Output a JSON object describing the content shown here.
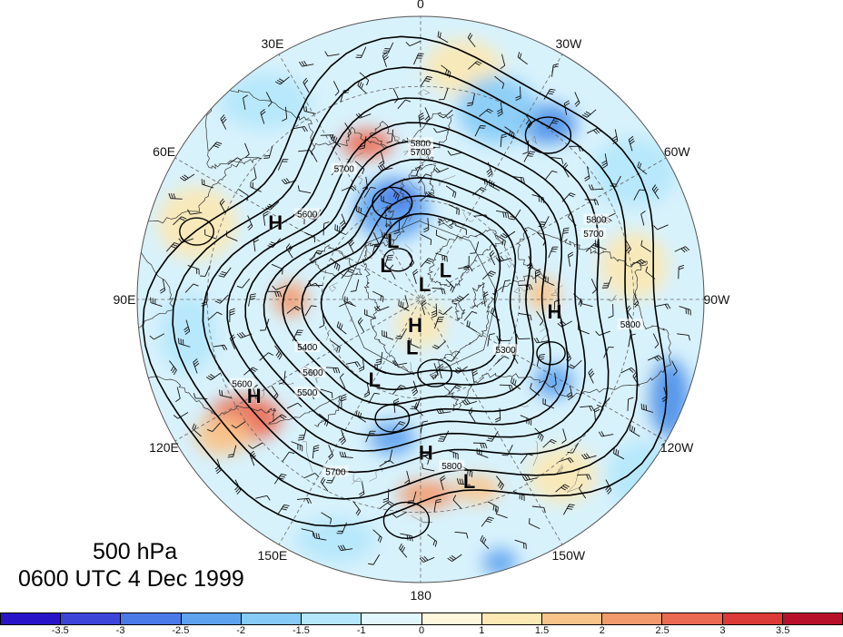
{
  "title": {
    "level": "500 hPa",
    "time": "0600 UTC 4 Dec 1999"
  },
  "longitude_labels": [
    "0",
    "30W",
    "60W",
    "90W",
    "120W",
    "150W",
    "180",
    "150E",
    "120E",
    "90E",
    "60E",
    "30E"
  ],
  "contour_labels": [
    "5800",
    "5700",
    "5700",
    "5600",
    "5500",
    "5400",
    "5300",
    "5600",
    "5700",
    "5800",
    "5700",
    "5800",
    "5600",
    "5800"
  ],
  "pressure_centers": [
    {
      "label": "H",
      "lon_deg_e": 62,
      "lat_deg": 42
    },
    {
      "label": "H",
      "lon_deg_e": -95,
      "lat_deg": 50
    },
    {
      "label": "H",
      "lon_deg_e": 120,
      "lat_deg": 35
    },
    {
      "label": "H",
      "lon_deg_e": 168,
      "lat_deg": 82
    },
    {
      "label": "H",
      "lon_deg_e": -178,
      "lat_deg": 45
    },
    {
      "label": "L",
      "lon_deg_e": 25,
      "lat_deg": 70
    },
    {
      "label": "L",
      "lon_deg_e": 45,
      "lat_deg": 75
    },
    {
      "label": "L",
      "lon_deg_e": -15,
      "lat_deg": 85
    },
    {
      "label": "L",
      "lon_deg_e": -40,
      "lat_deg": 78
    },
    {
      "label": "L",
      "lon_deg_e": 170,
      "lat_deg": 75
    },
    {
      "label": "L",
      "lon_deg_e": 150,
      "lat_deg": 62
    },
    {
      "label": "L",
      "lon_deg_e": -165,
      "lat_deg": 36
    }
  ],
  "colorbar": {
    "colors": [
      "#2a14c8",
      "#3d45d9",
      "#4a7ae8",
      "#5ea3f0",
      "#86cbf7",
      "#b4e7fb",
      "#e2f7fd",
      "#fff8dc",
      "#fce8b2",
      "#f8c48a",
      "#f39a6c",
      "#ec6a52",
      "#dc3a36",
      "#b8102a"
    ],
    "tick_labels": [
      "-3.5",
      "-3",
      "-2.5",
      "-2",
      "-1.5",
      "-1",
      "0",
      "1",
      "1.5",
      "2",
      "2.5",
      "3",
      "3.5"
    ]
  },
  "anomaly_patches": [
    {
      "color": "#4a8fe8",
      "cx_frac": 0.45,
      "cy_frac": -0.62,
      "rx_frac": 0.1,
      "ry_frac": 0.07
    },
    {
      "color": "#86cbf7",
      "cx_frac": 0.27,
      "cy_frac": -0.67,
      "rx_frac": 0.14,
      "ry_frac": 0.12
    },
    {
      "color": "#5ea3f0",
      "cx_frac": -0.1,
      "cy_frac": -0.32,
      "rx_frac": 0.13,
      "ry_frac": 0.11
    },
    {
      "color": "#4a7ae8",
      "cx_frac": -0.08,
      "cy_frac": -0.36,
      "rx_frac": 0.06,
      "ry_frac": 0.05
    },
    {
      "color": "#5ea3f0",
      "cx_frac": 0.47,
      "cy_frac": 0.29,
      "rx_frac": 0.07,
      "ry_frac": 0.06
    },
    {
      "color": "#4a8fe8",
      "cx_frac": 0.88,
      "cy_frac": 0.35,
      "rx_frac": 0.07,
      "ry_frac": 0.14
    },
    {
      "color": "#5ea3f0",
      "cx_frac": -0.1,
      "cy_frac": 0.49,
      "rx_frac": 0.08,
      "ry_frac": 0.06
    },
    {
      "color": "#5ea3f0",
      "cx_frac": 0.28,
      "cy_frac": 0.93,
      "rx_frac": 0.06,
      "ry_frac": 0.05
    },
    {
      "color": "#f39a6c",
      "cx_frac": 0.02,
      "cy_frac": 0.69,
      "rx_frac": 0.1,
      "ry_frac": 0.05
    },
    {
      "color": "#f8c48a",
      "cx_frac": 0.2,
      "cy_frac": 0.67,
      "rx_frac": 0.08,
      "ry_frac": 0.05
    },
    {
      "color": "#ec6a52",
      "cx_frac": -0.62,
      "cy_frac": 0.42,
      "rx_frac": 0.13,
      "ry_frac": 0.08
    },
    {
      "color": "#f8c48a",
      "cx_frac": -0.7,
      "cy_frac": 0.48,
      "rx_frac": 0.1,
      "ry_frac": 0.07
    },
    {
      "color": "#ec6a52",
      "cx_frac": -0.19,
      "cy_frac": -0.55,
      "rx_frac": 0.09,
      "ry_frac": 0.05
    },
    {
      "color": "#f39a6c",
      "cx_frac": -0.46,
      "cy_frac": 0.0,
      "rx_frac": 0.06,
      "ry_frac": 0.06
    },
    {
      "color": "#f8c48a",
      "cx_frac": 0.43,
      "cy_frac": -0.02,
      "rx_frac": 0.06,
      "ry_frac": 0.06
    },
    {
      "color": "#fce8b2",
      "cx_frac": 0.15,
      "cy_frac": -0.82,
      "rx_frac": 0.14,
      "ry_frac": 0.1
    },
    {
      "color": "#fce8b2",
      "cx_frac": -0.79,
      "cy_frac": -0.27,
      "rx_frac": 0.14,
      "ry_frac": 0.13
    },
    {
      "color": "#fce8b2",
      "cx_frac": 0.75,
      "cy_frac": -0.12,
      "rx_frac": 0.12,
      "ry_frac": 0.12
    },
    {
      "color": "#fce8b2",
      "cx_frac": 0.5,
      "cy_frac": 0.62,
      "rx_frac": 0.12,
      "ry_frac": 0.1
    },
    {
      "color": "#fce8b2",
      "cx_frac": 0.0,
      "cy_frac": 0.09,
      "rx_frac": 0.09,
      "ry_frac": 0.08
    },
    {
      "color": "#b4e7fb",
      "cx_frac": 0.75,
      "cy_frac": -0.45,
      "rx_frac": 0.15,
      "ry_frac": 0.12
    },
    {
      "color": "#b4e7fb",
      "cx_frac": -0.55,
      "cy_frac": -0.7,
      "rx_frac": 0.16,
      "ry_frac": 0.1
    },
    {
      "color": "#b4e7fb",
      "cx_frac": 0.78,
      "cy_frac": 0.62,
      "rx_frac": 0.12,
      "ry_frac": 0.12
    },
    {
      "color": "#b4e7fb",
      "cx_frac": -0.82,
      "cy_frac": 0.12,
      "rx_frac": 0.1,
      "ry_frac": 0.14
    },
    {
      "color": "#b4e7fb",
      "cx_frac": -0.3,
      "cy_frac": 0.85,
      "rx_frac": 0.14,
      "ry_frac": 0.08
    }
  ],
  "colors": {
    "contour": "#000000",
    "coast": "#333333",
    "grid": "#666666"
  }
}
